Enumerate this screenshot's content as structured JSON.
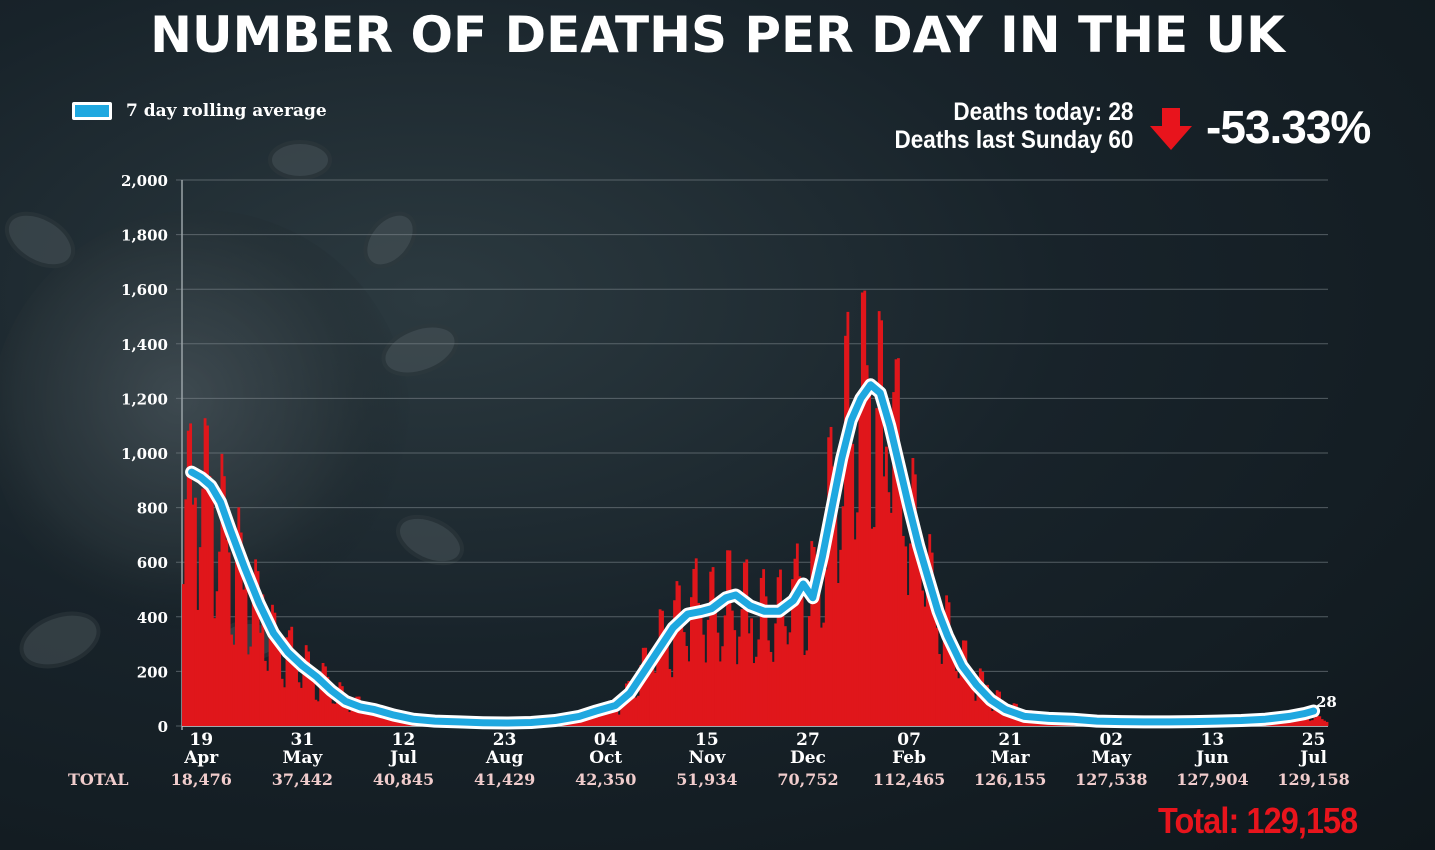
{
  "title": "NUMBER OF DEATHS PER DAY IN THE UK",
  "legend": {
    "label": "7 day rolling average",
    "color": "#1fa8e0"
  },
  "stats": {
    "today_label": "Deaths today: 28",
    "last_sunday_label": "Deaths last Sunday 60",
    "change": "-53.33%",
    "arrow": "down-arrow-icon"
  },
  "total_row_label": "TOTAL",
  "grand_total": "Total: 129,158",
  "end_label": "28",
  "colors": {
    "bars": "#e0161b",
    "line": "#1fa8e0",
    "line_border": "#ffffff",
    "total": "#e8141c"
  },
  "chart_data": {
    "type": "bar",
    "title": "NUMBER OF DEATHS PER DAY IN THE UK",
    "ylim": [
      0,
      2000
    ],
    "yticks": [
      "0",
      "200",
      "400",
      "600",
      "800",
      "1,000",
      "1,200",
      "1,400",
      "1,600",
      "1,800",
      "2,000"
    ],
    "ytick_values": [
      0,
      200,
      400,
      600,
      800,
      1000,
      1200,
      1400,
      1600,
      1800,
      2000
    ],
    "x_start_day": 0,
    "x_end_day": 476,
    "x_ticks": [
      {
        "day": 8,
        "day_label": "19",
        "month_label": "Apr",
        "total": "18,476"
      },
      {
        "day": 50,
        "day_label": "31",
        "month_label": "May",
        "total": "37,442"
      },
      {
        "day": 92,
        "day_label": "12",
        "month_label": "Jul",
        "total": "40,845"
      },
      {
        "day": 134,
        "day_label": "23",
        "month_label": "Aug",
        "total": "41,429"
      },
      {
        "day": 176,
        "day_label": "04",
        "month_label": "Oct",
        "total": "42,350"
      },
      {
        "day": 218,
        "day_label": "15",
        "month_label": "Nov",
        "total": "51,934"
      },
      {
        "day": 260,
        "day_label": "27",
        "month_label": "Dec",
        "total": "70,752"
      },
      {
        "day": 302,
        "day_label": "07",
        "month_label": "Feb",
        "total": "112,465"
      },
      {
        "day": 344,
        "day_label": "21",
        "month_label": "Mar",
        "total": "126,155"
      },
      {
        "day": 386,
        "day_label": "02",
        "month_label": "May",
        "total": "127,538"
      },
      {
        "day": 428,
        "day_label": "13",
        "month_label": "Jun",
        "total": "127,904"
      },
      {
        "day": 470,
        "day_label": "25",
        "month_label": "Jul",
        "total": "129,158"
      }
    ],
    "rolling_average": {
      "name": "7 day rolling average",
      "days": [
        4,
        8,
        12,
        16,
        20,
        26,
        32,
        38,
        44,
        50,
        56,
        62,
        68,
        74,
        80,
        88,
        96,
        105,
        115,
        125,
        135,
        145,
        155,
        165,
        172,
        180,
        186,
        192,
        198,
        204,
        210,
        216,
        220,
        226,
        230,
        236,
        242,
        248,
        254,
        258,
        262,
        266,
        270,
        274,
        278,
        282,
        286,
        290,
        294,
        298,
        302,
        306,
        310,
        314,
        318,
        324,
        330,
        336,
        342,
        350,
        360,
        370,
        380,
        390,
        400,
        410,
        420,
        430,
        440,
        450,
        460,
        466,
        470
      ],
      "values": [
        930,
        910,
        880,
        820,
        720,
        580,
        450,
        340,
        270,
        220,
        180,
        130,
        90,
        70,
        60,
        40,
        25,
        18,
        15,
        12,
        11,
        13,
        20,
        35,
        55,
        75,
        120,
        200,
        280,
        360,
        410,
        420,
        430,
        470,
        480,
        440,
        420,
        420,
        460,
        520,
        470,
        620,
        800,
        980,
        1120,
        1200,
        1250,
        1220,
        1100,
        950,
        800,
        660,
        540,
        420,
        330,
        220,
        150,
        95,
        60,
        35,
        28,
        25,
        18,
        16,
        15,
        15,
        16,
        18,
        20,
        25,
        35,
        45,
        55
      ]
    },
    "daily_envelope": {
      "days": [
        0,
        4,
        8,
        12,
        16,
        20,
        26,
        32,
        38,
        44,
        50,
        56,
        62,
        68,
        74,
        80,
        88,
        96,
        110,
        130,
        150,
        165,
        172,
        180,
        186,
        192,
        198,
        204,
        210,
        216,
        220,
        226,
        230,
        236,
        242,
        248,
        254,
        258,
        262,
        266,
        270,
        274,
        278,
        282,
        286,
        290,
        294,
        298,
        302,
        306,
        310,
        314,
        318,
        324,
        330,
        336,
        342,
        350,
        360,
        380,
        400,
        420,
        440,
        460,
        466,
        470,
        476
      ],
      "values": [
        1100,
        1150,
        1150,
        1100,
        980,
        850,
        680,
        560,
        430,
        360,
        300,
        250,
        180,
        130,
        100,
        80,
        60,
        40,
        25,
        15,
        18,
        45,
        70,
        100,
        180,
        300,
        420,
        520,
        580,
        600,
        560,
        650,
        620,
        570,
        560,
        560,
        620,
        700,
        650,
        880,
        1150,
        1350,
        1550,
        1650,
        1500,
        1550,
        1450,
        1250,
        1050,
        880,
        700,
        560,
        450,
        330,
        230,
        140,
        100,
        60,
        45,
        30,
        25,
        25,
        28,
        45,
        55,
        40,
        30
      ]
    }
  }
}
